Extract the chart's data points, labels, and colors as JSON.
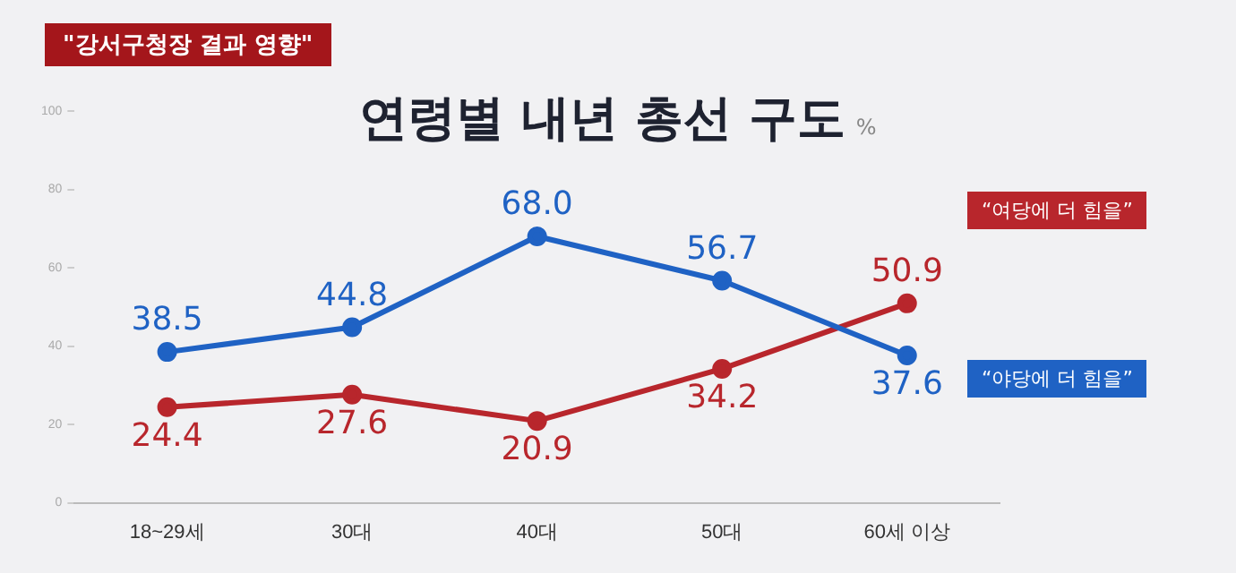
{
  "chart_data": {
    "type": "line",
    "title": "연령별 내년 총선 구도",
    "subtitle": "\"강서구청장 결과 영향\"",
    "ylabel": "%",
    "categories": [
      "18~29세",
      "30대",
      "40대",
      "50대",
      "60세 이상"
    ],
    "series": [
      {
        "name": "“야당에 더 힘을”",
        "color": "#1f62c4",
        "values": [
          38.5,
          44.8,
          68.0,
          56.7,
          37.6
        ],
        "value_labels": [
          "38.5",
          "44.8",
          "68.0",
          "56.7",
          "37.6"
        ]
      },
      {
        "name": "“여당에 더 힘을”",
        "color": "#b8262c",
        "values": [
          24.4,
          27.6,
          20.9,
          34.2,
          50.9
        ],
        "value_labels": [
          "24.4",
          "27.6",
          "20.9",
          "34.2",
          "50.9"
        ]
      }
    ],
    "ylim": [
      0,
      100
    ],
    "yticks": [
      0,
      20,
      40,
      60,
      80,
      100
    ],
    "grid": false,
    "legend": "right",
    "marker": "circle",
    "line_style": "solid"
  }
}
